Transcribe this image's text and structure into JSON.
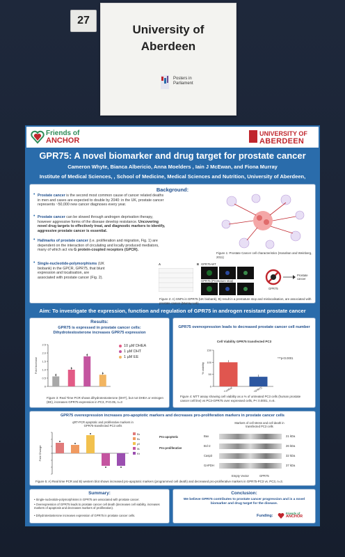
{
  "tag": {
    "number": "27"
  },
  "placard": {
    "line1": "University of",
    "line2": "Aberdeen",
    "logo_line1": "Posters in",
    "logo_line2": "Parliament"
  },
  "poster": {
    "logo_left_1": "Friends of",
    "logo_left_2": "ANCHOR",
    "logo_right_1": "UNIVERSITY OF",
    "logo_right_2": "ABERDEEN",
    "title": "GPR75: A novel biomarker and drug target for prostate cancer",
    "authors": "Cameron Whyte, Bianca Albericio, Anna Moelders , Iain J McEwan, and Fiona Murray",
    "institute": "Institute of Medical Sciences, , School of Medicine, Medical Sciences and Nutrition, University of Aberdeen,",
    "background": {
      "heading": "Background:",
      "p1_term": "Prostate cancer",
      "p1": "is the second most common cause of cancer related deaths in men and cases are expected to double by 2040: in the UK, prostate cancer represents ~50,000 new cancer diagnoses every year.",
      "p2_term": "Prostate cancer",
      "p2": "can be slowed through androgen deprivation therapy, however aggressive forms of the disease develop resistance.",
      "p2_bold": "Uncovering novel drug targets to effectively treat, and diagnostic markers to identify, aggressive prostate cancer is essential.",
      "p3_term": "Hallmarks of prostate cancer",
      "p3": "(i.e. proliferation and migration, Fig. 1) are dependent on the interaction of circulating and locally produced mediators, many of which act via",
      "p3_bold": "G protein-coupled receptors (GPCR).",
      "p4_term": "Single-nucleotide-polymorphisms",
      "p4": "(UK biobank) in the GPCR, GPR75, that blunt expression and localisation, are associated with prostate cancer (Fig. 2).",
      "fig1_caption": "Figure 1: Prostate Cancer cell characteristics (Hanahan and Weinberg, 2011)",
      "fig2_caption": "Figure 2: A) SNPs in GPR75 (UK biobank), B) result in a premature stop and mislocalisation, are associated with prostate cancer (Murray Lab)",
      "fig2_label_gpr75": "GPR75-WT",
      "fig2_label_stop": "GPR75 (Premature stop)",
      "fig2_label_gpr75b": "GPR75",
      "fig2_label_cancer": "Prostate cancer",
      "fig2_a": "A",
      "fig2_b": "B"
    },
    "aim": "Aim: To investigate the expression, function and regulation of GPR75 in androgen resistant prostate cancer",
    "results_heading": "Results:",
    "chart1": {
      "title_1": "GPR75 is expressed in prostate cancer cells:",
      "title_2": "Dihydrotestosterone increases GPR75 expression",
      "ylabel": "Fold Increase",
      "caption": "Figure 3: Real Time PCR shows dihydrotestosterone (DHT), but not DHEA or estrogen (EE), increases GPR75 expression in PC3, P<0.05, n=3"
    },
    "chart2": {
      "title": "GPR75 overexpression leads to decreased prostate cancer cell number",
      "inner_title": "Cell Viability GPR75 transfected PC3",
      "ylabel": "% viability",
      "annotation": "***p<0.0001",
      "caption": "Figure 4: MTT assay showing cell viability as a % of untreated PC3 cells (human prostate cancer cell line) vs PC3-GPR75 over expressed cells, P< 0.0001, n=6."
    },
    "chart3": {
      "title": "GPR75 overexpression increases pro-apoptotic markers and decreases pro-proliferation markers in prostate cancer cells",
      "inner_title_1": "qRT-PCR apoptotic and proliferative markers in",
      "inner_title_2": "GPR75-transfected PC3 cells",
      "ylabel": "Fold Change",
      "bracket_1": "Pro-apoptotic",
      "bracket_2": "Pro-proliferative",
      "blot_title_1": "Markers of cell stress and cell death in",
      "blot_title_2": "transfected PC3 cells",
      "blot_labels": [
        "Bax",
        "Bcl-2",
        "Casp3",
        "GAPDH"
      ],
      "blot_kda": [
        "21 kDa",
        "26 kDa",
        "32 kDa",
        "37 kDa"
      ],
      "blot_lanes": [
        "Empty Vector",
        "GPR75"
      ],
      "caption": "Figure 5: A) Real time PCR and B) western blot shows increased pro-apoptotic markers (programmed cell death) and decreased pro-proliferative markers in GPR75-PC3 vs. PC3, n=3."
    },
    "summary": {
      "heading": "Summary:",
      "items": [
        "Single-nucleotide-polymorphisms in GPR75 are associated with prostate cancer.",
        "Overexpression of GPR75 leads to prostate cancer cell death (decreases cell viability, increases markers of apoptosis and decreases markers of proliferation).",
        "Dihydrotestosterone increases expression of GPR75 in prostate cancer cells."
      ]
    },
    "conclusion": {
      "heading": "Conclusion:",
      "text": "We believe GPR75 contributes to prostate cancer progression and is a novel biomarker and drug target for the disease.",
      "funding_label": "Funding:",
      "funding_logo_1": "Friends of",
      "funding_logo_2": "ANCHOR"
    }
  },
  "chart_data": [
    {
      "type": "bar",
      "categories": [
        "Control",
        "10 µM DHEA",
        "1 µM DHT",
        "1 µM EE"
      ],
      "values": [
        0.6,
        1.0,
        1.8,
        0.7
      ],
      "colors": [
        "#a8a8a8",
        "#e25b86",
        "#c455a0",
        "#f2b561"
      ],
      "legend": [
        "10 µM DHEA",
        "1 µM DHT",
        "1 µM EE"
      ],
      "yticks": [
        "0",
        "0.5",
        "1.0",
        "1.5",
        "2.0",
        "2.5"
      ],
      "ylim": [
        0,
        2.5
      ]
    },
    {
      "type": "bar",
      "categories": [
        "Control",
        "GPR75"
      ],
      "values": [
        100,
        40
      ],
      "colors": [
        "#e0564f",
        "#2d57a0"
      ],
      "yticks": [
        "0",
        "50",
        "100",
        "150"
      ],
      "ylim": [
        0,
        150
      ]
    },
    {
      "type": "bar",
      "categories": [
        "Bax",
        "Bcl-2",
        "p53",
        "MAPK",
        "Ki67"
      ],
      "values": [
        0.75,
        0.6,
        1.3,
        -0.9,
        -0.9
      ],
      "colors": [
        "#e07a7a",
        "#f09a60",
        "#f2c14e",
        "#c455a0",
        "#9b4fb0"
      ],
      "ylim": [
        -1.5,
        1.5
      ]
    }
  ]
}
